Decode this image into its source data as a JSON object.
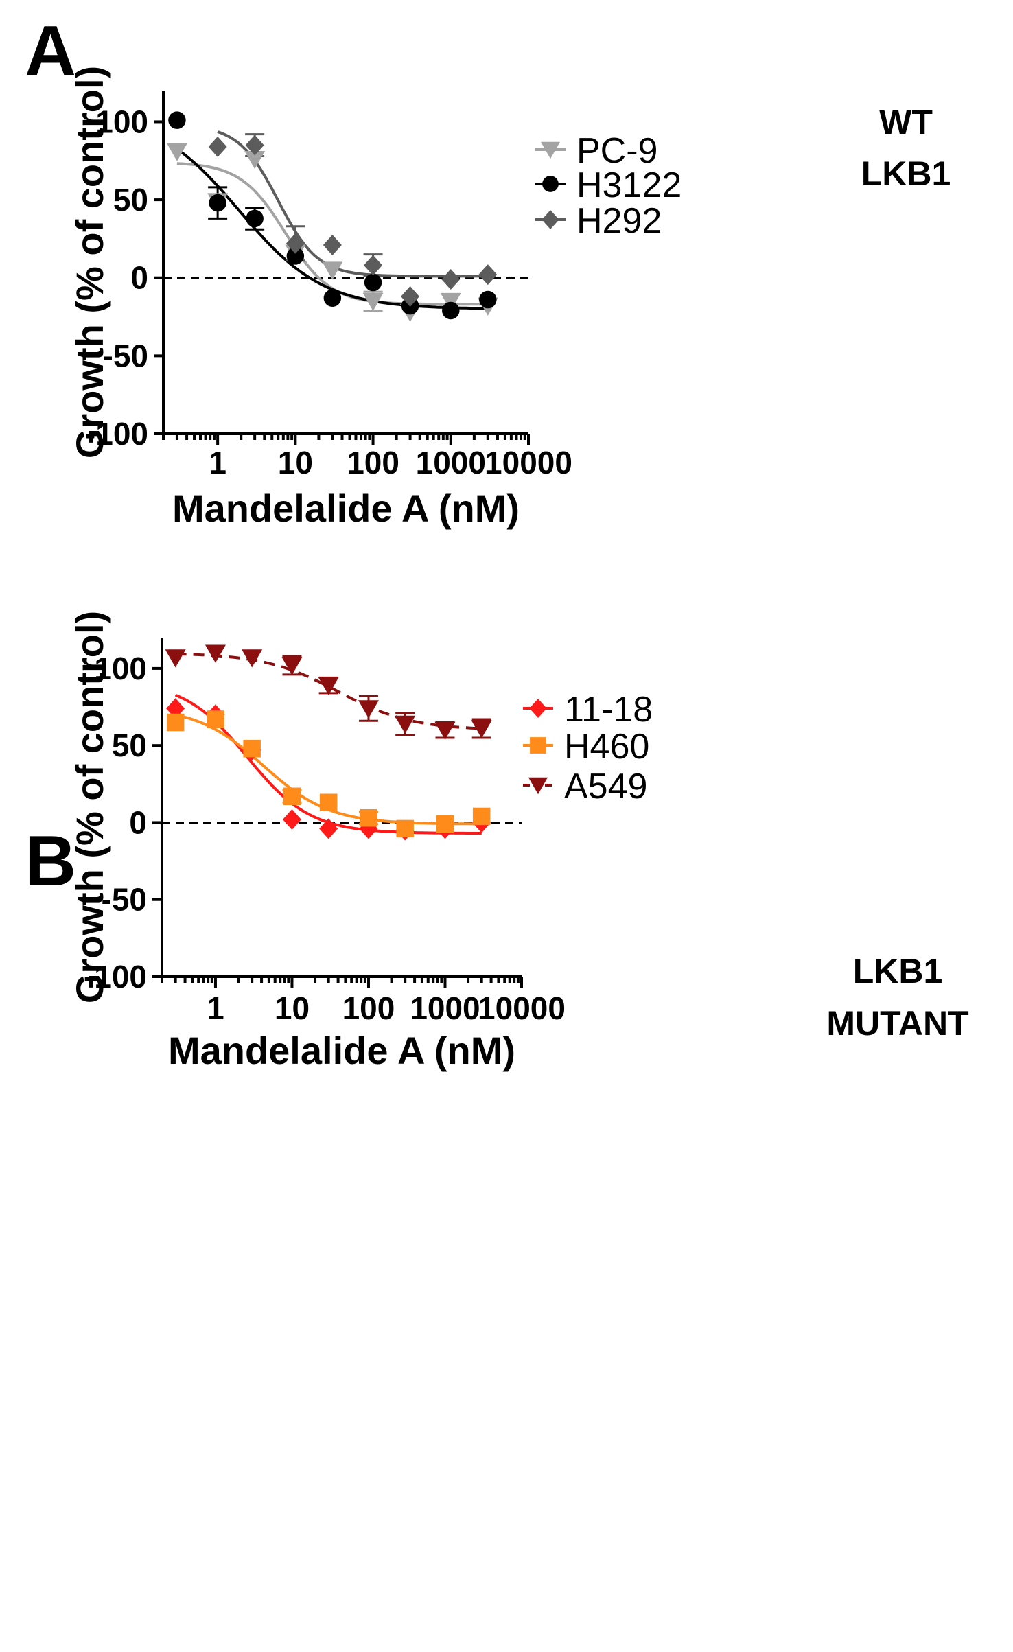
{
  "chart_data": [
    {
      "panel": "A",
      "type": "scatter",
      "xscale": "log",
      "xlabel": "Mandelalide A (nM)",
      "ylabel": "Growth (% of control)",
      "xlim": [
        0.2,
        10000
      ],
      "ylim": [
        -100,
        120
      ],
      "xticks": [
        1,
        10,
        100,
        1000,
        10000
      ],
      "xtick_labels": [
        "1",
        "10",
        "100",
        "1000",
        "10000"
      ],
      "yticks": [
        100,
        50,
        0,
        -50,
        -100
      ],
      "ytick_labels": [
        "100",
        "50",
        "0",
        "-50",
        "-100"
      ],
      "reference_line": {
        "y": 0,
        "style": "dashed"
      },
      "legend_title": [
        "WT",
        "LKB1"
      ],
      "legend_position": "top-right outside",
      "series": [
        {
          "name": "PC-9",
          "color": "#a3a3a3",
          "marker": "triangle-down",
          "line": "solid",
          "x": [
            0.3,
            1,
            3,
            10,
            30,
            100,
            300,
            1000,
            3000
          ],
          "y": [
            81,
            49,
            76,
            16,
            5,
            -15,
            -22,
            -15,
            -18
          ],
          "err": [
            0,
            0,
            0,
            0,
            0,
            6,
            0,
            0,
            0
          ],
          "fit": {
            "bottom": -17,
            "top": 74,
            "ec50": 7.5,
            "hill": 1.5
          }
        },
        {
          "name": "H3122",
          "color": "#000000",
          "marker": "circle",
          "line": "solid",
          "x": [
            0.3,
            1,
            3,
            10,
            30,
            100,
            300,
            1000,
            3000
          ],
          "y": [
            101,
            48,
            38,
            14,
            -13,
            -3,
            -18,
            -21,
            -14
          ],
          "err": [
            0,
            10,
            7,
            0,
            0,
            0,
            0,
            0,
            0
          ],
          "fit": {
            "bottom": -20,
            "top": 106,
            "ec50": 1.9,
            "hill": 0.8
          }
        },
        {
          "name": "H292",
          "color": "#5c5c5c",
          "marker": "diamond",
          "line": "solid",
          "x": [
            1,
            3,
            10,
            30,
            100,
            300,
            1000,
            3000
          ],
          "y": [
            84,
            85,
            22,
            21,
            8,
            -12,
            -1,
            2
          ],
          "err": [
            0,
            7,
            11,
            0,
            7,
            0,
            0,
            0
          ],
          "fit": {
            "bottom": 1,
            "top": 98,
            "ec50": 6,
            "hill": 1.7
          }
        }
      ]
    },
    {
      "panel": "B",
      "type": "scatter",
      "xscale": "log",
      "xlabel": "Mandelalide A (nM)",
      "ylabel": "Growth (% of control)",
      "xlim": [
        0.2,
        10000
      ],
      "ylim": [
        -100,
        120
      ],
      "xticks": [
        1,
        10,
        100,
        1000,
        10000
      ],
      "xtick_labels": [
        "1",
        "10",
        "100",
        "1000",
        "10000"
      ],
      "yticks": [
        100,
        50,
        0,
        -50,
        -100
      ],
      "ytick_labels": [
        "100",
        "50",
        "0",
        "-50",
        "-100"
      ],
      "reference_line": {
        "y": 0,
        "style": "dashed"
      },
      "legend_title": [
        "LKB1",
        "MUTANT"
      ],
      "legend_position": "top-right outside",
      "series": [
        {
          "name": "11-18",
          "color": "#ff1a1a",
          "marker": "diamond",
          "line": "solid",
          "x": [
            0.3,
            1,
            3,
            10,
            30,
            100,
            300,
            1000,
            3000
          ],
          "y": [
            74,
            70,
            47,
            2,
            -4,
            -4,
            -5,
            -4,
            0
          ],
          "err": [
            0,
            0,
            0,
            0,
            0,
            0,
            0,
            0,
            0
          ],
          "fit": {
            "bottom": -7,
            "top": 92,
            "ec50": 2.6,
            "hill": 1.05
          }
        },
        {
          "name": "H460",
          "color": "#ff8c1a",
          "marker": "square",
          "line": "solid",
          "x": [
            0.3,
            1,
            3,
            10,
            30,
            100,
            300,
            1000,
            3000
          ],
          "y": [
            65,
            67,
            48,
            17,
            13,
            3,
            -4,
            -1,
            4
          ],
          "err": [
            0,
            0,
            0,
            4,
            0,
            4,
            0,
            0,
            0
          ],
          "fit": {
            "bottom": -1,
            "top": 75,
            "ec50": 4.2,
            "hill": 1.0
          }
        },
        {
          "name": "A549",
          "color": "#8b0f0f",
          "marker": "triangle-down",
          "line": "dashed",
          "x": [
            0.3,
            1,
            3,
            10,
            30,
            100,
            300,
            1000,
            3000
          ],
          "y": [
            107,
            110,
            107,
            102,
            89,
            74,
            64,
            60,
            61
          ],
          "err": [
            0,
            0,
            0,
            6,
            5,
            8,
            7,
            5,
            6
          ],
          "fit": {
            "bottom": 60,
            "top": 110,
            "ec50": 40,
            "hill": 0.9
          }
        }
      ]
    }
  ]
}
